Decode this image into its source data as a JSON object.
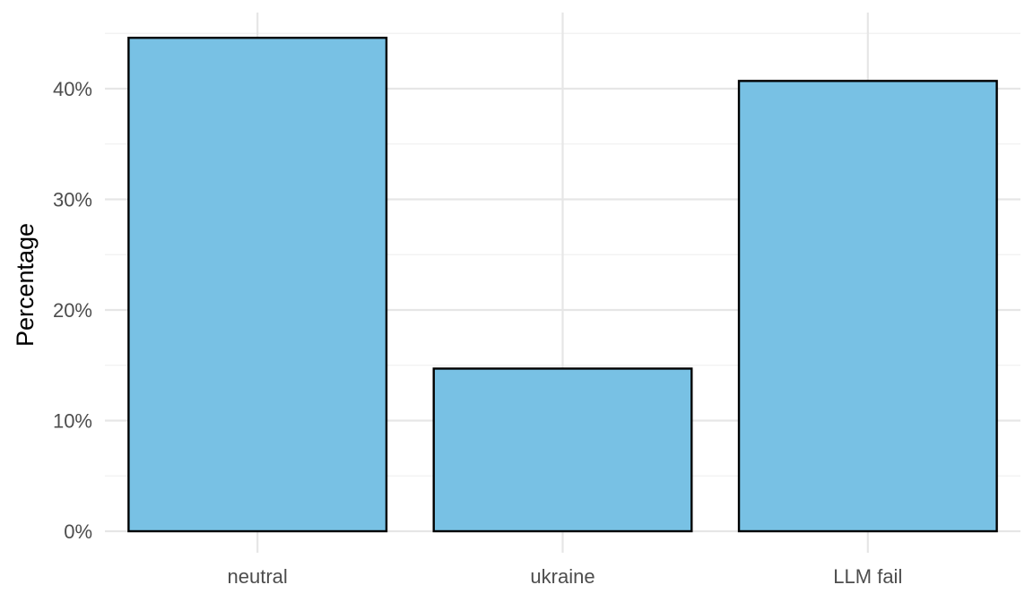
{
  "chart_data": {
    "type": "bar",
    "title": "",
    "xlabel": "",
    "ylabel": "Percentage",
    "categories": [
      "neutral",
      "ukraine",
      "LLM fail"
    ],
    "values": [
      44.6,
      14.7,
      40.7
    ],
    "value_unit": "%",
    "ylim": [
      0,
      47
    ],
    "y_ticks": [
      0,
      10,
      20,
      30,
      40
    ],
    "y_tick_labels": [
      "0%",
      "10%",
      "20%",
      "30%",
      "40%"
    ],
    "grid": true,
    "legend": "none",
    "colors": {
      "bar_fill": "#78C1E4",
      "bar_stroke": "#000000",
      "grid_major": "#E6E6E6",
      "grid_minor": "#F0F0F0",
      "tick_text": "#4D4D4D",
      "axis_title": "#000000"
    }
  }
}
